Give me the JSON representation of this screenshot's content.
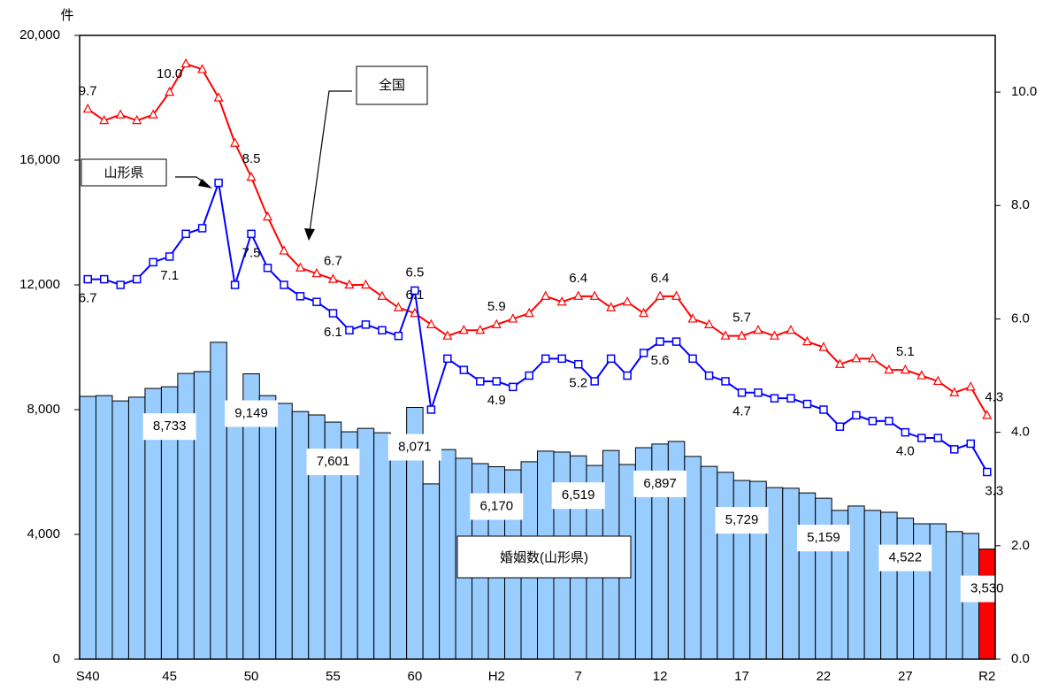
{
  "chart_data": {
    "type": "bar_line",
    "ylabel": "件",
    "categories": [
      "S40",
      null,
      null,
      null,
      null,
      "45",
      null,
      null,
      null,
      null,
      "50",
      null,
      null,
      null,
      null,
      "55",
      null,
      null,
      null,
      null,
      "60",
      null,
      null,
      null,
      null,
      "H2",
      null,
      null,
      null,
      null,
      "7",
      null,
      null,
      null,
      null,
      "12",
      null,
      null,
      null,
      null,
      "17",
      null,
      null,
      null,
      null,
      "22",
      null,
      null,
      null,
      null,
      "27",
      null,
      null,
      null,
      null,
      "R2"
    ],
    "ylim": [
      0,
      20000
    ],
    "yticks": [
      {
        "value": 0,
        "label": "0"
      },
      {
        "value": 4000,
        "label": "4,000"
      },
      {
        "value": 8000,
        "label": "8,000"
      },
      {
        "value": 12000,
        "label": "12,000"
      },
      {
        "value": 16000,
        "label": "16,000"
      },
      {
        "value": 20000,
        "label": "20,000"
      }
    ],
    "y2lim": [
      0,
      11
    ],
    "y2ticks": [
      {
        "value": 0,
        "label": "0.0"
      },
      {
        "value": 2,
        "label": "2.0"
      },
      {
        "value": 4,
        "label": "4.0"
      },
      {
        "value": 6,
        "label": "6.0"
      },
      {
        "value": 8,
        "label": "8.0"
      },
      {
        "value": 10,
        "label": "10.0"
      }
    ],
    "series": [
      {
        "name": "婚姻数(山形県)",
        "type": "bar",
        "values": [
          8425,
          8450,
          8280,
          8400,
          8680,
          8733,
          9160,
          9220,
          10160,
          8000,
          9149,
          8450,
          8200,
          7940,
          7830,
          7601,
          7290,
          7400,
          7260,
          7180,
          8071,
          5620,
          6720,
          6440,
          6270,
          6170,
          6070,
          6330,
          6670,
          6640,
          6519,
          6210,
          6690,
          6240,
          6780,
          6897,
          6980,
          6500,
          6180,
          5990,
          5729,
          5700,
          5500,
          5480,
          5330,
          5159,
          4770,
          4910,
          4770,
          4710,
          4522,
          4340,
          4340,
          4090,
          4030,
          3530
        ],
        "value_labels": [
          null,
          null,
          null,
          null,
          null,
          "8,733",
          null,
          null,
          null,
          null,
          "9,149",
          null,
          null,
          null,
          null,
          "7,601",
          null,
          null,
          null,
          null,
          "8,071",
          null,
          null,
          null,
          null,
          "6,170",
          null,
          null,
          null,
          null,
          "6,519",
          null,
          null,
          null,
          null,
          "6,897",
          null,
          null,
          null,
          null,
          "5,729",
          null,
          null,
          null,
          null,
          "5,159",
          null,
          null,
          null,
          null,
          "4,522",
          null,
          null,
          null,
          null,
          "3,530"
        ],
        "colors": [
          "#99ccff",
          "#99ccff",
          "#99ccff",
          "#99ccff",
          "#99ccff",
          "#99ccff",
          "#99ccff",
          "#99ccff",
          "#99ccff",
          "#99ccff",
          "#99ccff",
          "#99ccff",
          "#99ccff",
          "#99ccff",
          "#99ccff",
          "#99ccff",
          "#99ccff",
          "#99ccff",
          "#99ccff",
          "#99ccff",
          "#99ccff",
          "#99ccff",
          "#99ccff",
          "#99ccff",
          "#99ccff",
          "#99ccff",
          "#99ccff",
          "#99ccff",
          "#99ccff",
          "#99ccff",
          "#99ccff",
          "#99ccff",
          "#99ccff",
          "#99ccff",
          "#99ccff",
          "#99ccff",
          "#99ccff",
          "#99ccff",
          "#99ccff",
          "#99ccff",
          "#99ccff",
          "#99ccff",
          "#99ccff",
          "#99ccff",
          "#99ccff",
          "#99ccff",
          "#99ccff",
          "#99ccff",
          "#99ccff",
          "#99ccff",
          "#99ccff",
          "#99ccff",
          "#99ccff",
          "#99ccff",
          "#99ccff",
          "#ff0000"
        ]
      },
      {
        "name": "全国",
        "type": "line",
        "axis": "y2",
        "color": "#ff0000",
        "marker": "triangle",
        "values": [
          9.7,
          9.5,
          9.6,
          9.5,
          9.6,
          10.0,
          10.5,
          10.4,
          9.9,
          9.1,
          8.5,
          7.8,
          7.2,
          6.9,
          6.8,
          6.7,
          6.6,
          6.6,
          6.4,
          6.2,
          6.1,
          5.9,
          5.7,
          5.8,
          5.8,
          5.9,
          6.0,
          6.1,
          6.4,
          6.3,
          6.4,
          6.4,
          6.2,
          6.3,
          6.1,
          6.4,
          6.4,
          6.0,
          5.9,
          5.7,
          5.7,
          5.8,
          5.7,
          5.8,
          5.6,
          5.5,
          5.2,
          5.3,
          5.3,
          5.1,
          5.1,
          5.0,
          4.9,
          4.7,
          4.8,
          4.3
        ],
        "value_labels": [
          "9.7",
          null,
          null,
          null,
          null,
          "10.0",
          null,
          null,
          null,
          null,
          "8.5",
          null,
          null,
          null,
          null,
          "6.7",
          null,
          null,
          null,
          null,
          "6.1",
          null,
          null,
          null,
          null,
          "5.9",
          null,
          null,
          null,
          null,
          "6.4",
          null,
          null,
          null,
          null,
          "6.4",
          null,
          null,
          null,
          null,
          "5.7",
          null,
          null,
          null,
          null,
          null,
          null,
          null,
          null,
          null,
          "5.1",
          null,
          null,
          null,
          null,
          "4.3"
        ]
      },
      {
        "name": "山形県",
        "type": "line",
        "axis": "y2",
        "color": "#0000ff",
        "marker": "square",
        "values": [
          6.7,
          6.7,
          6.6,
          6.7,
          7.0,
          7.1,
          7.5,
          7.6,
          8.4,
          6.6,
          7.5,
          6.9,
          6.6,
          6.4,
          6.3,
          6.1,
          5.8,
          5.9,
          5.8,
          5.7,
          6.5,
          4.4,
          5.3,
          5.1,
          4.9,
          4.9,
          4.8,
          5.0,
          5.3,
          5.3,
          5.2,
          4.9,
          5.3,
          5.0,
          5.4,
          5.6,
          5.6,
          5.3,
          5.0,
          4.9,
          4.7,
          4.7,
          4.6,
          4.6,
          4.5,
          4.4,
          4.1,
          4.3,
          4.2,
          4.2,
          4.0,
          3.9,
          3.9,
          3.7,
          3.8,
          3.3
        ],
        "value_labels": [
          "6.7",
          null,
          null,
          null,
          null,
          "7.1",
          null,
          null,
          null,
          null,
          "7.5",
          null,
          null,
          null,
          null,
          "6.1",
          null,
          null,
          null,
          null,
          "6.5",
          null,
          null,
          null,
          null,
          "4.9",
          null,
          null,
          null,
          null,
          "5.2",
          null,
          null,
          null,
          null,
          "5.6",
          null,
          null,
          null,
          null,
          "4.7",
          null,
          null,
          null,
          null,
          null,
          null,
          null,
          null,
          null,
          "4.0",
          null,
          null,
          null,
          null,
          "3.3"
        ]
      }
    ]
  }
}
